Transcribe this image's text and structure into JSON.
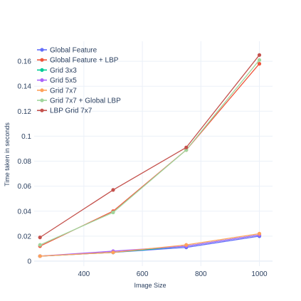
{
  "chart_data": {
    "type": "line",
    "title": "",
    "xlabel": "Image Size",
    "ylabel": "Time taken in seconds",
    "x": [
      250,
      500,
      750,
      1000
    ],
    "xlim": [
      230,
      1045
    ],
    "ylim": [
      -0.004,
      0.176
    ],
    "xticks": [
      400,
      600,
      800,
      1000
    ],
    "yticks": [
      0,
      0.02,
      0.04,
      0.06,
      0.08,
      0.1,
      0.12,
      0.14,
      0.16
    ],
    "ytick_labels": [
      "0",
      "0.02",
      "0.04",
      "0.06",
      "0.08",
      "0.1",
      "0.12",
      "0.14",
      "0.16"
    ],
    "grid": true,
    "legend_position": "top-left",
    "series": [
      {
        "name": "Global Feature",
        "color": "#636efa",
        "values": [
          0.004,
          0.007,
          0.011,
          0.02
        ]
      },
      {
        "name": "Global Feature + LBP",
        "color": "#ef553b",
        "values": [
          0.012,
          0.04,
          0.089,
          0.158
        ]
      },
      {
        "name": "Grid 3x3",
        "color": "#00cc96",
        "values": [
          0.004,
          0.007,
          0.012,
          0.021
        ]
      },
      {
        "name": "Grid 5x5",
        "color": "#ab63fa",
        "values": [
          0.004,
          0.008,
          0.012,
          0.021
        ]
      },
      {
        "name": "Grid 7x7",
        "color": "#ffa15a",
        "values": [
          0.004,
          0.007,
          0.013,
          0.022
        ]
      },
      {
        "name": "Grid 7x7 + Global LBP",
        "color": "#a0d59c",
        "values": [
          0.013,
          0.039,
          0.089,
          0.161
        ]
      },
      {
        "name": "LBP Grid 7x7",
        "color": "#c4514c",
        "values": [
          0.019,
          0.057,
          0.091,
          0.165
        ]
      }
    ]
  }
}
